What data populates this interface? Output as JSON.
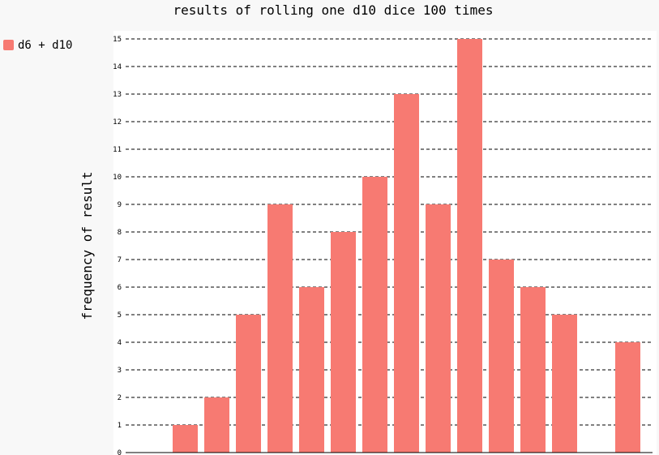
{
  "chart_data": {
    "type": "bar",
    "title": "results of rolling one d10 dice 100 times",
    "ylabel": "frequency of result",
    "xlabel": "",
    "ylim": [
      0,
      15
    ],
    "yticks": [
      0,
      1,
      2,
      3,
      4,
      5,
      6,
      7,
      8,
      9,
      10,
      11,
      12,
      13,
      14,
      15
    ],
    "grid": true,
    "legend_position": "top-left",
    "series": [
      {
        "name": "d6 + d10",
        "color": "#f77a72",
        "values": [
          0,
          1,
          2,
          5,
          9,
          6,
          8,
          10,
          13,
          9,
          15,
          7,
          6,
          5,
          0,
          4
        ]
      }
    ]
  }
}
